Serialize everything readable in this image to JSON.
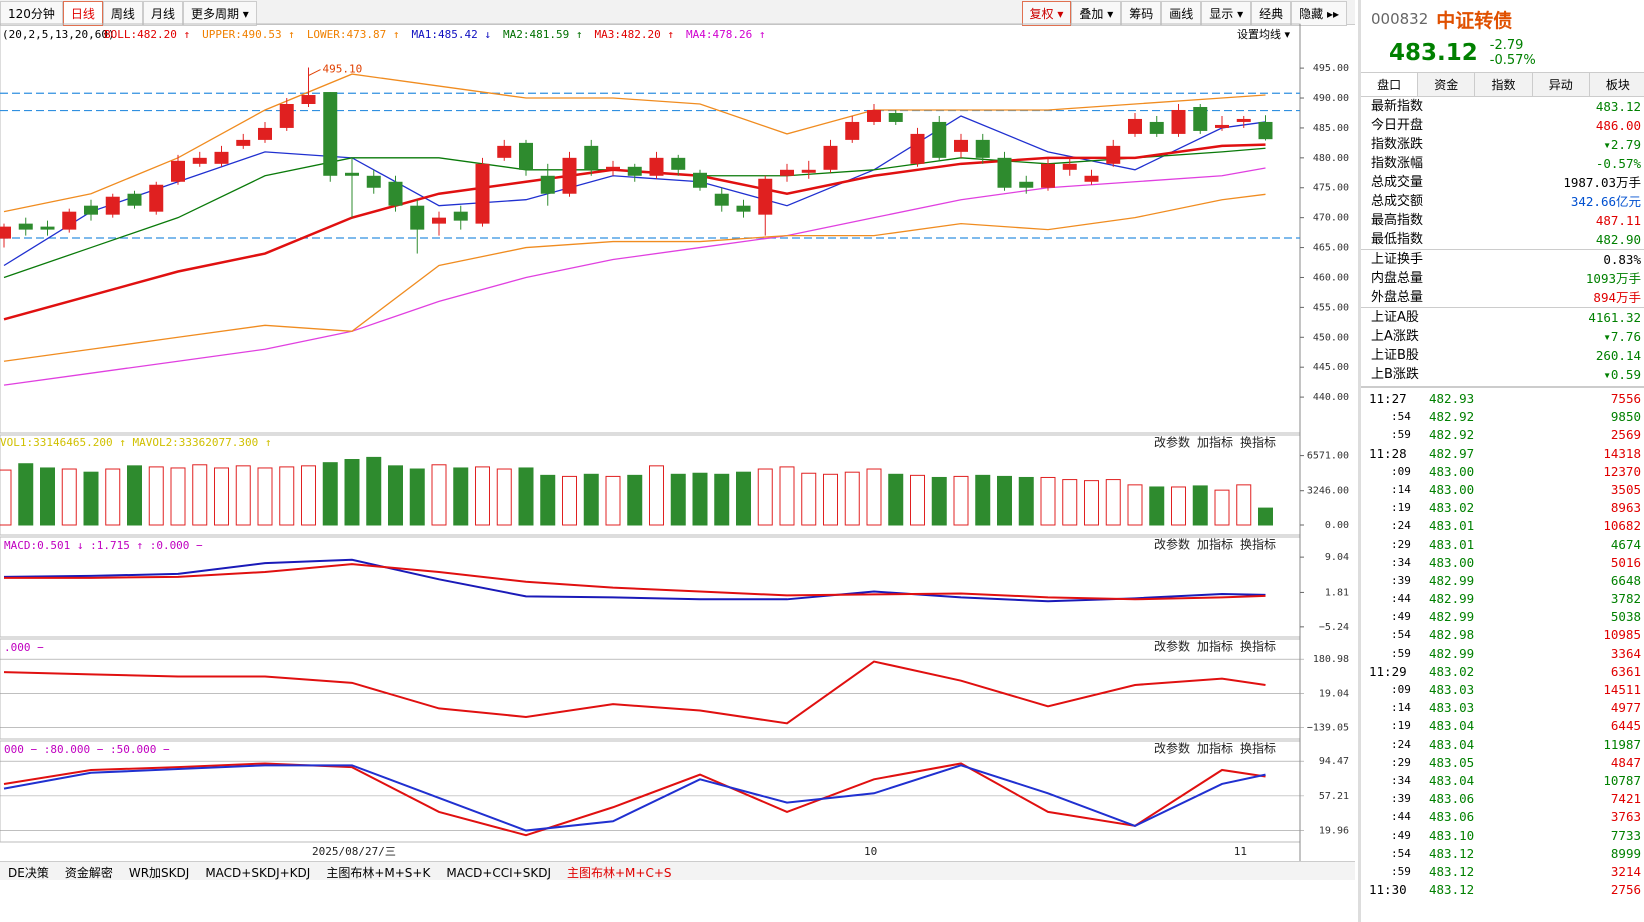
{
  "toolbar": {
    "periods": [
      "120分钟",
      "日线",
      "周线",
      "月线",
      "更多周期 ▾"
    ],
    "active": 1,
    "tools": [
      "复权 ▾",
      "叠加 ▾",
      "筹码",
      "画线",
      "显示 ▾",
      "经典",
      "隐藏 ▸▸"
    ]
  },
  "chart_data": {
    "type": "candlestick",
    "params": "(20,2,5,13,20,60)",
    "indicators": [
      {
        "text": "BOLL:482.20 ↑",
        "color": "#e00000"
      },
      {
        "text": "UPPER:490.53 ↑",
        "color": "#f08000"
      },
      {
        "text": "LOWER:473.87 ↑",
        "color": "#f08000"
      },
      {
        "text": "MA1:485.42 ↓",
        "color": "#1010c0"
      },
      {
        "text": "MA2:481.59 ↑",
        "color": "#007000"
      },
      {
        "text": "MA3:482.20 ↑",
        "color": "#e00000"
      },
      {
        "text": "MA4:478.26 ↑",
        "color": "#d000d0"
      }
    ],
    "set_ma": "设置均线 ▾",
    "high_label": "495.10",
    "ylim": [
      434.5,
      499.7
    ],
    "yticks": [
      {
        "value": 495,
        "label": "495.00"
      },
      {
        "value": 490,
        "label": "490.00"
      },
      {
        "value": 485,
        "label": "485.00"
      },
      {
        "value": 480,
        "label": "480.00"
      },
      {
        "value": 475,
        "label": "475.00"
      },
      {
        "value": 470,
        "label": "470.00"
      },
      {
        "value": 465,
        "label": "465.00"
      },
      {
        "value": 460,
        "label": "460.00"
      },
      {
        "value": 455,
        "label": "455.00"
      },
      {
        "value": 450,
        "label": "450.00"
      },
      {
        "value": 445,
        "label": "445.00"
      },
      {
        "value": 440,
        "label": "440.00"
      }
    ],
    "hlines": [
      490.8,
      487.9,
      466.6
    ],
    "open": [
      466.5,
      469,
      468.5,
      468,
      472,
      470.5,
      474,
      471,
      476,
      479,
      479,
      482,
      483,
      485,
      489,
      491,
      477.5,
      477,
      476,
      472,
      469,
      471,
      469,
      480,
      482.5,
      477,
      474,
      482,
      478,
      478.5,
      477,
      480,
      477.5,
      474,
      472,
      470.5,
      477,
      477.5,
      478,
      483,
      486,
      487.5,
      479,
      486,
      481,
      483,
      480,
      476,
      475,
      478,
      476,
      479,
      484,
      486,
      484,
      488.5,
      485,
      486,
      486
    ],
    "close": [
      468.5,
      468,
      468,
      471,
      470.5,
      473.5,
      472,
      475.5,
      479.5,
      480,
      481,
      483,
      485,
      489,
      490.5,
      477,
      477,
      475,
      472,
      468,
      470,
      469.5,
      479,
      482,
      478,
      474,
      480,
      478,
      478.5,
      477,
      480,
      478,
      475,
      472,
      471,
      476.5,
      478,
      478,
      482,
      486,
      488,
      486,
      484,
      480,
      483,
      480,
      475,
      475,
      479,
      479,
      477,
      482,
      486.5,
      484,
      488,
      484.5,
      485.5,
      486.5,
      483.12
    ],
    "high": [
      469,
      470,
      469.5,
      471.5,
      473,
      474,
      474.5,
      476,
      480.5,
      481,
      482,
      484,
      486,
      490,
      495.1,
      491,
      480,
      478,
      477,
      473,
      471,
      472,
      480,
      483,
      483,
      479,
      481,
      483,
      479.5,
      479,
      481,
      480.5,
      478,
      475,
      473,
      477,
      479,
      479.5,
      483,
      487,
      489,
      488,
      485,
      487,
      484,
      484,
      481,
      477,
      480,
      480,
      478,
      483,
      487.5,
      487,
      489,
      489,
      487,
      487,
      487.11
    ],
    "low": [
      465,
      467,
      467,
      467.5,
      469.5,
      470,
      471.5,
      470.5,
      475.5,
      478.5,
      478.5,
      481.5,
      482.5,
      484.5,
      488.5,
      476,
      470,
      474,
      471,
      464,
      467,
      468,
      468.5,
      479.5,
      477,
      472,
      473.5,
      477,
      477,
      476,
      476.5,
      477,
      474.5,
      471,
      470,
      467,
      476,
      476.5,
      477.5,
      482.5,
      485.5,
      485.5,
      478.5,
      479.5,
      480,
      479,
      474.5,
      474,
      474.5,
      477,
      475.5,
      478.5,
      483.5,
      483.5,
      483.5,
      484,
      484.5,
      485,
      482.9
    ],
    "up_color": "#e02020",
    "down_color": "#2e8b2e",
    "line_x": [
      0,
      4,
      8,
      12,
      16,
      20,
      24,
      28,
      32,
      36,
      40,
      44,
      48,
      52,
      56,
      58
    ],
    "lines": [
      {
        "name": "MA1",
        "color": "#2030d0",
        "values": [
          462,
          471,
          476,
          481,
          480,
          472,
          473,
          477,
          476,
          472,
          478,
          487,
          481,
          478,
          485,
          486
        ]
      },
      {
        "name": "MA2",
        "color": "#0a7a0a",
        "values": [
          460,
          465,
          470,
          477,
          480,
          480,
          478,
          478,
          477,
          477,
          478,
          480,
          479,
          480,
          481,
          481.6
        ]
      },
      {
        "name": "MA3",
        "color": "#e01010",
        "values": [
          453,
          457,
          461,
          464,
          470,
          474,
          476,
          478,
          477,
          474,
          477,
          479,
          480,
          480,
          482,
          482.2
        ]
      },
      {
        "name": "MA4",
        "color": "#e040e0",
        "values": [
          442,
          444,
          446,
          448,
          451,
          456,
          460,
          463,
          465,
          467,
          470,
          473,
          475,
          476,
          477,
          478.3
        ]
      },
      {
        "name": "UPPER",
        "color": "#f08c20",
        "values": [
          471,
          474,
          480,
          488,
          494,
          492,
          490,
          490,
          489,
          484,
          488,
          488,
          488,
          489,
          490,
          490.5
        ]
      },
      {
        "name": "LOWER",
        "color": "#f08c20",
        "values": [
          446,
          448,
          450,
          452,
          451,
          462,
          465,
          466,
          466,
          467,
          467,
          469,
          468,
          470,
          473,
          473.9
        ]
      }
    ],
    "buttons": [
      "改参数",
      "加指标",
      "换指标"
    ],
    "vol": {
      "label": "VOL1:33146465.200 ↑  MAVOL2:33362077.300 ↑",
      "ylim": [
        0,
        7100
      ],
      "yticks": [
        {
          "value": 6571,
          "label": "6571.00"
        },
        {
          "value": 3246,
          "label": "3246.00"
        },
        {
          "value": 0,
          "label": "0.00"
        }
      ],
      "values": [
        5200,
        5800,
        5400,
        5300,
        5000,
        5300,
        5600,
        5500,
        5400,
        5700,
        5400,
        5600,
        5400,
        5500,
        5600,
        5900,
        6200,
        6400,
        5600,
        5300,
        5700,
        5400,
        5500,
        5300,
        5400,
        4700,
        4600,
        4800,
        4600,
        4700,
        5600,
        4800,
        4900,
        4800,
        5000,
        5300,
        5500,
        4900,
        4800,
        5000,
        5300,
        4800,
        4700,
        4500,
        4600,
        4700,
        4600,
        4500,
        4500,
        4300,
        4200,
        4300,
        3800,
        3600,
        3600,
        3700,
        3300,
        3800,
        1600
      ]
    },
    "macd": {
      "label": "MACD:0.501 ↓ :1.715 ↑ :0.000 −",
      "ylim": [
        -6.5,
        10.5
      ],
      "yticks": [
        {
          "value": 9.04,
          "label": "9.04"
        },
        {
          "value": 1.81,
          "label": "1.81"
        },
        {
          "value": -5.24,
          "label": "−5.24"
        }
      ],
      "lines": [
        {
          "name": "DIF",
          "color": "#1a1ab8",
          "values": [
            5,
            5.2,
            5.6,
            7.8,
            8.5,
            4.5,
            1,
            0.8,
            0.4,
            0.4,
            2,
            0.8,
            0,
            0.6,
            1.5,
            1.3
          ]
        },
        {
          "name": "DEA",
          "color": "#e01010",
          "values": [
            4.8,
            4.8,
            5,
            6,
            7.6,
            6,
            4,
            2.8,
            2,
            1.2,
            1.4,
            1.6,
            0.8,
            0.4,
            0.8,
            1.1
          ]
        }
      ]
    },
    "cci": {
      "label": ".000 −",
      "ylim": [
        -170,
        210
      ],
      "yticks": [
        {
          "value": 180.98,
          "label": "180.98"
        },
        {
          "value": 19.04,
          "label": "19.04"
        },
        {
          "value": -139.05,
          "label": "−139.05"
        }
      ],
      "lines": [
        {
          "name": "CCI",
          "color": "#e01010",
          "values": [
            120,
            110,
            100,
            100,
            70,
            -50,
            -90,
            -30,
            -60,
            -120,
            170,
            80,
            -40,
            60,
            90,
            60
          ]
        }
      ]
    },
    "kdj": {
      "label": "000 − :80.000 − :50.000 −",
      "ylim": [
        12,
        100
      ],
      "yticks": [
        {
          "value": 94.47,
          "label": "94.47"
        },
        {
          "value": 57.21,
          "label": "57.21"
        },
        {
          "value": 19.96,
          "label": "19.96"
        }
      ],
      "lines": [
        {
          "name": "K",
          "color": "#e01010",
          "values": [
            70,
            85,
            88,
            92,
            88,
            40,
            15,
            45,
            80,
            40,
            75,
            92,
            40,
            25,
            85,
            78
          ]
        },
        {
          "name": "D",
          "color": "#2030d0",
          "values": [
            65,
            82,
            86,
            90,
            90,
            55,
            20,
            30,
            75,
            50,
            60,
            90,
            60,
            25,
            70,
            80
          ]
        }
      ]
    },
    "dates": [
      {
        "label": "2025/08/27/三",
        "index": 16
      },
      {
        "label": "10",
        "index": 40
      },
      {
        "label": "11",
        "index": 57
      }
    ]
  },
  "tabs": [
    "DE决策",
    "资金解密",
    "WR加SKDJ",
    "MACD+SKDJ+KDJ",
    "主图布林+M+S+K",
    "MACD+CCI+SKDJ",
    "主图布林+M+C+S"
  ],
  "active_tab": 6,
  "quote": {
    "code": "000832",
    "name": "中证转债",
    "price": "483.12",
    "change": "-2.79",
    "pct": "-0.57%",
    "tabs": [
      "盘口",
      "资金",
      "指数",
      "异动",
      "板块"
    ],
    "rows": [
      [
        "最新指数",
        "483.12",
        "#008000"
      ],
      [
        "今日开盘",
        "486.00",
        "#e00000"
      ],
      [
        "指数涨跌",
        "▾2.79",
        "#008000"
      ],
      [
        "指数涨幅",
        "-0.57%",
        "#008000"
      ],
      [
        "总成交量",
        "1987.03万手",
        "#000"
      ],
      [
        "总成交额",
        "342.66亿元",
        "#0050d0"
      ],
      [
        "最高指数",
        "487.11",
        "#e00000"
      ],
      [
        "最低指数",
        "482.90",
        "#008000"
      ],
      [
        "上证换手",
        "0.83%",
        "#000"
      ],
      [
        "内盘总量",
        "1093万手",
        "#008000"
      ],
      [
        "外盘总量",
        "894万手",
        "#e00000"
      ],
      [
        "上证A股",
        "4161.32",
        "#008000"
      ],
      [
        "上A涨跌",
        "▾7.76",
        "#008000"
      ],
      [
        "上证B股",
        "260.14",
        "#008000"
      ],
      [
        "上B涨跌",
        "▾0.59",
        "#008000"
      ]
    ],
    "ticks": [
      [
        "11:27",
        "482.93",
        "7556",
        "#e00000"
      ],
      [
        ":54",
        "482.92",
        "9850",
        "#008000"
      ],
      [
        ":59",
        "482.92",
        "2569",
        "#e00000"
      ],
      [
        "11:28",
        "482.97",
        "14318",
        "#e00000"
      ],
      [
        ":09",
        "483.00",
        "12370",
        "#e00000"
      ],
      [
        ":14",
        "483.00",
        "3505",
        "#e00000"
      ],
      [
        ":19",
        "483.02",
        "8963",
        "#e00000"
      ],
      [
        ":24",
        "483.01",
        "10682",
        "#e00000"
      ],
      [
        ":29",
        "483.01",
        "4674",
        "#008000"
      ],
      [
        ":34",
        "483.00",
        "5016",
        "#e00000"
      ],
      [
        ":39",
        "482.99",
        "6648",
        "#008000"
      ],
      [
        ":44",
        "482.99",
        "3782",
        "#008000"
      ],
      [
        ":49",
        "482.99",
        "5038",
        "#008000"
      ],
      [
        ":54",
        "482.98",
        "10985",
        "#e00000"
      ],
      [
        ":59",
        "482.99",
        "3364",
        "#e00000"
      ],
      [
        "11:29",
        "483.02",
        "6361",
        "#e00000"
      ],
      [
        ":09",
        "483.03",
        "14511",
        "#e00000"
      ],
      [
        ":14",
        "483.03",
        "4977",
        "#e00000"
      ],
      [
        ":19",
        "483.04",
        "6445",
        "#e00000"
      ],
      [
        ":24",
        "483.04",
        "11987",
        "#008000"
      ],
      [
        ":29",
        "483.05",
        "4847",
        "#e00000"
      ],
      [
        ":34",
        "483.04",
        "10787",
        "#008000"
      ],
      [
        ":39",
        "483.06",
        "7421",
        "#e00000"
      ],
      [
        ":44",
        "483.06",
        "3763",
        "#e00000"
      ],
      [
        ":49",
        "483.10",
        "7733",
        "#008000"
      ],
      [
        ":54",
        "483.12",
        "8999",
        "#008000"
      ],
      [
        ":59",
        "483.12",
        "3214",
        "#e00000"
      ],
      [
        "11:30",
        "483.12",
        "2756",
        "#e00000"
      ]
    ]
  }
}
